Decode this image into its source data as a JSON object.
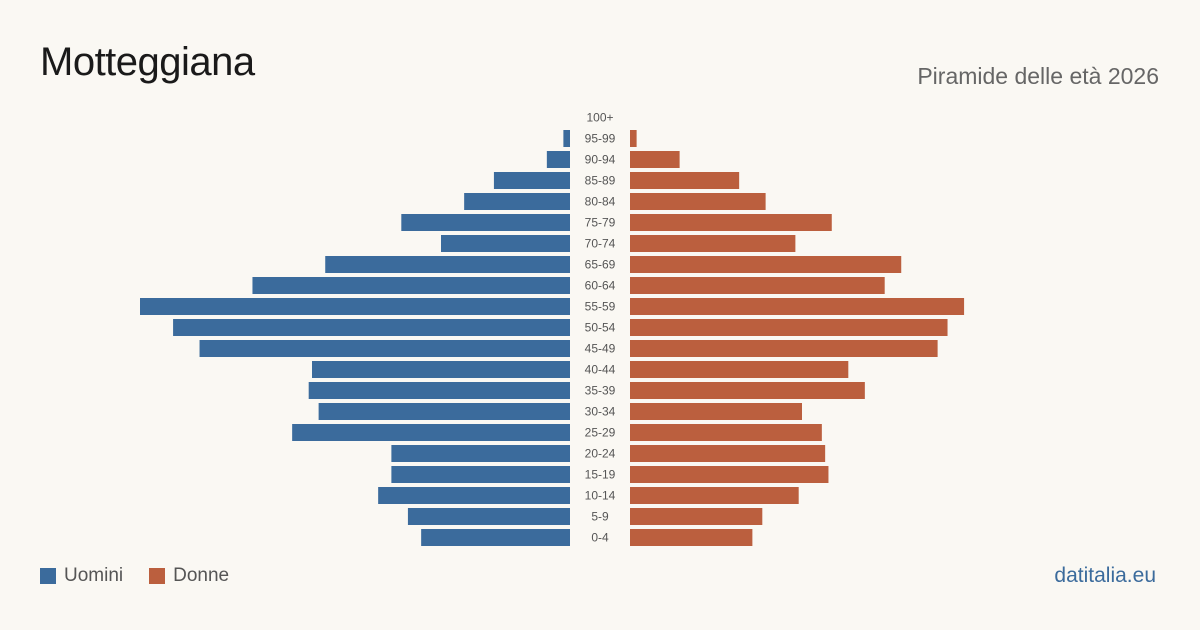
{
  "header": {
    "title": "Motteggiana",
    "subtitle": "Piramide delle età 2026"
  },
  "legend": {
    "men_label": "Uomini",
    "women_label": "Donne"
  },
  "footer": {
    "brand": "datitalia.eu"
  },
  "colors": {
    "men": "#3b6b9c",
    "women": "#bb5f3e",
    "label": "#555555"
  },
  "chart_data": {
    "type": "bar",
    "orientation": "horizontal-pyramid",
    "categories": [
      "100+",
      "95-99",
      "90-94",
      "85-89",
      "80-84",
      "75-79",
      "70-74",
      "65-69",
      "60-64",
      "55-59",
      "50-54",
      "45-49",
      "40-44",
      "35-39",
      "30-34",
      "25-29",
      "20-24",
      "15-19",
      "10-14",
      "5-9",
      "0-4"
    ],
    "series": [
      {
        "name": "Uomini",
        "values": [
          0,
          2,
          7,
          23,
          32,
          51,
          39,
          74,
          96,
          130,
          120,
          112,
          78,
          79,
          76,
          84,
          54,
          54,
          58,
          49,
          45
        ]
      },
      {
        "name": "Donne",
        "values": [
          0,
          2,
          15,
          33,
          41,
          61,
          50,
          82,
          77,
          101,
          96,
          93,
          66,
          71,
          52,
          58,
          59,
          60,
          51,
          40,
          37
        ]
      }
    ],
    "xlim": [
      0,
      130
    ],
    "legend_position": "bottom-left",
    "grid": false
  }
}
